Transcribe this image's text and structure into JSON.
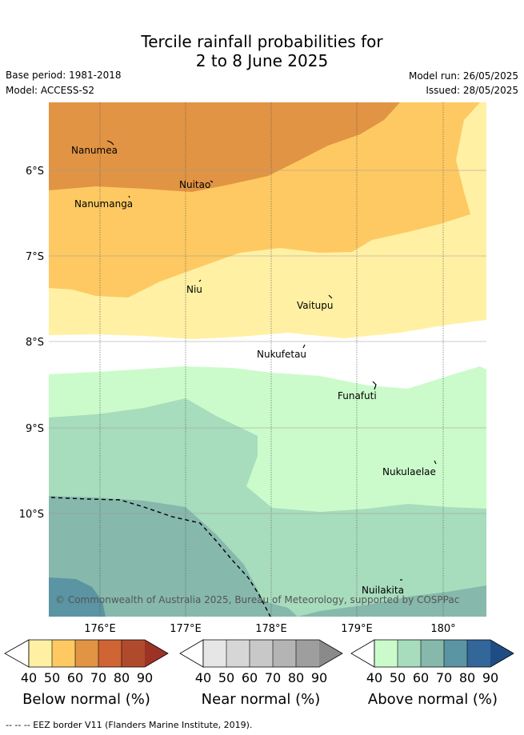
{
  "title_line1": "Tercile rainfall probabilities for",
  "title_line2": "2 to 8 June 2025",
  "base_period": "Base period: 1981-2018",
  "model": "Model: ACCESS-S2",
  "model_run": "Model run: 26/05/2025",
  "issued": "Issued: 28/05/2025",
  "copyright": "© Commonwealth of Australia 2025, Bureau of Meteorology, supported by COSPPac",
  "footer": "--  --  -- EEZ border V11 (Flanders Marine Institute, 2019).",
  "map": {
    "lon_ticks": [
      "176°E",
      "177°E",
      "178°E",
      "179°E",
      "180°"
    ],
    "lat_ticks": [
      "6°S",
      "7°S",
      "8°S",
      "9°S",
      "10°S"
    ],
    "places": [
      "Nanumea",
      "Nuitao",
      "Nanumanga",
      "Niu",
      "Vaitupu",
      "Nukufetau",
      "Funafuti",
      "Nukulaelae",
      "Nuilakita"
    ]
  },
  "legend": {
    "below": {
      "title": "Below normal (%)",
      "colors": [
        "#fff0a3",
        "#fec962",
        "#e19444",
        "#cf6434",
        "#b04a2c",
        "#9c3325"
      ]
    },
    "near": {
      "title": "Near normal (%)",
      "colors": [
        "#e6e6e6",
        "#d6d6d6",
        "#c8c8c8",
        "#b4b4b4",
        "#9e9e9e",
        "#8a8a8a"
      ]
    },
    "above": {
      "title": "Above normal (%)",
      "colors": [
        "#cbfbcb",
        "#a7dcbd",
        "#86b8ac",
        "#5b94a3",
        "#336699",
        "#1e4d85"
      ]
    },
    "ticks": [
      "40",
      "50",
      "60",
      "70",
      "80",
      "90"
    ]
  }
}
